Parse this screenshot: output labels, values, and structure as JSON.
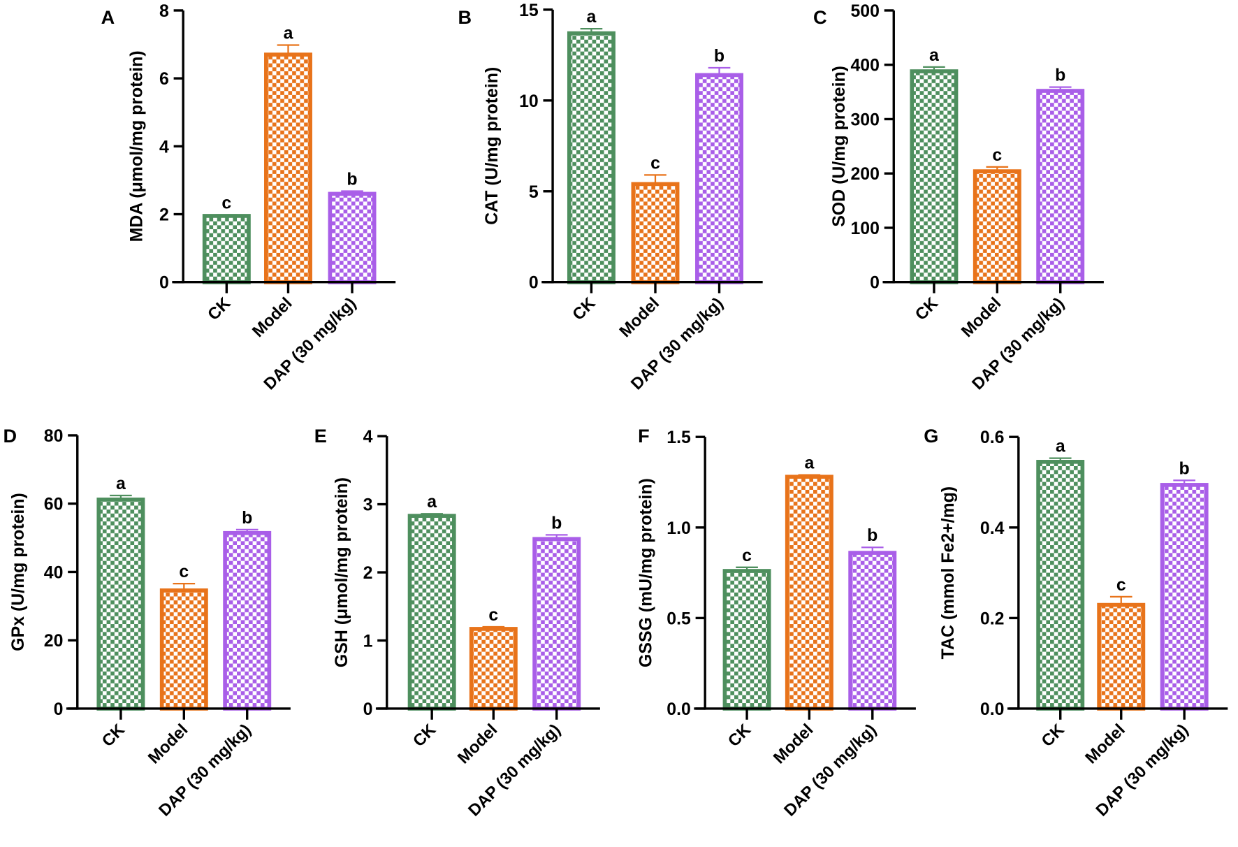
{
  "categories": [
    "CK",
    "Model",
    "DAP (30 mg/kg)"
  ],
  "colors": {
    "CK": "#4e8f5e",
    "Model": "#e8731a",
    "DAP": "#a95ee8"
  },
  "chart_data": [
    {
      "type": "bar",
      "panel": "A",
      "ylabel": "MDA (μmol/mg protein)",
      "ylim": [
        0,
        8
      ],
      "yticks": [
        "0",
        "2",
        "4",
        "6",
        "8"
      ],
      "tick_values": [
        0,
        2,
        4,
        6,
        8
      ],
      "values": [
        1.95,
        6.7,
        2.6
      ],
      "errors": [
        0.03,
        0.28,
        0.08
      ],
      "letters": [
        "c",
        "a",
        "b"
      ]
    },
    {
      "type": "bar",
      "panel": "B",
      "ylabel": "CAT  (U/mg protein)",
      "ylim": [
        0,
        15
      ],
      "yticks": [
        "0",
        "5",
        "10",
        "15"
      ],
      "tick_values": [
        0,
        5,
        10,
        15
      ],
      "values": [
        13.7,
        5.4,
        11.4
      ],
      "errors": [
        0.25,
        0.5,
        0.4
      ],
      "letters": [
        "a",
        "c",
        "b"
      ]
    },
    {
      "type": "bar",
      "panel": "C",
      "ylabel": "SOD (U/mg protein)",
      "ylim": [
        0,
        500
      ],
      "yticks": [
        "0",
        "100",
        "200",
        "300",
        "400",
        "500"
      ],
      "tick_values": [
        0,
        100,
        200,
        300,
        400,
        500
      ],
      "values": [
        388,
        204,
        352
      ],
      "errors": [
        8,
        8,
        7
      ],
      "letters": [
        "a",
        "c",
        "b"
      ]
    },
    {
      "type": "bar",
      "panel": "D",
      "ylabel": "GPx  (U/mg protein)",
      "ylim": [
        0,
        80
      ],
      "yticks": [
        "0",
        "20",
        "40",
        "60",
        "80"
      ],
      "tick_values": [
        0,
        20,
        40,
        60,
        80
      ],
      "values": [
        61.2,
        34.6,
        51.4
      ],
      "errors": [
        1.2,
        2.0,
        1.0
      ],
      "letters": [
        "a",
        "c",
        "b"
      ]
    },
    {
      "type": "bar",
      "panel": "E",
      "ylabel": "GSH (μmol/mg protein)",
      "ylim": [
        0,
        4
      ],
      "yticks": [
        "0",
        "1",
        "2",
        "3",
        "4"
      ],
      "tick_values": [
        0,
        1,
        2,
        3,
        4
      ],
      "values": [
        2.83,
        1.17,
        2.49
      ],
      "errors": [
        0.03,
        0.03,
        0.06
      ],
      "letters": [
        "a",
        "c",
        "b"
      ]
    },
    {
      "type": "bar",
      "panel": "F",
      "ylabel": "GSSG (mU/mg protein)",
      "ylim": [
        0,
        1.5
      ],
      "yticks": [
        "0.0",
        "0.5",
        "1.0",
        "1.5"
      ],
      "tick_values": [
        0,
        0.5,
        1.0,
        1.5
      ],
      "values": [
        0.76,
        1.28,
        0.86
      ],
      "errors": [
        0.02,
        0.01,
        0.03
      ],
      "letters": [
        "c",
        "a",
        "b"
      ]
    },
    {
      "type": "bar",
      "panel": "G",
      "ylabel": "TAC (mmol Fe2+/mg)",
      "ylim": [
        0,
        0.6
      ],
      "yticks": [
        "0.0",
        "0.2",
        "0.4",
        "0.6"
      ],
      "tick_values": [
        0,
        0.2,
        0.4,
        0.6
      ],
      "values": [
        0.545,
        0.229,
        0.494
      ],
      "errors": [
        0.008,
        0.018,
        0.01
      ],
      "letters": [
        "a",
        "c",
        "b"
      ]
    }
  ]
}
